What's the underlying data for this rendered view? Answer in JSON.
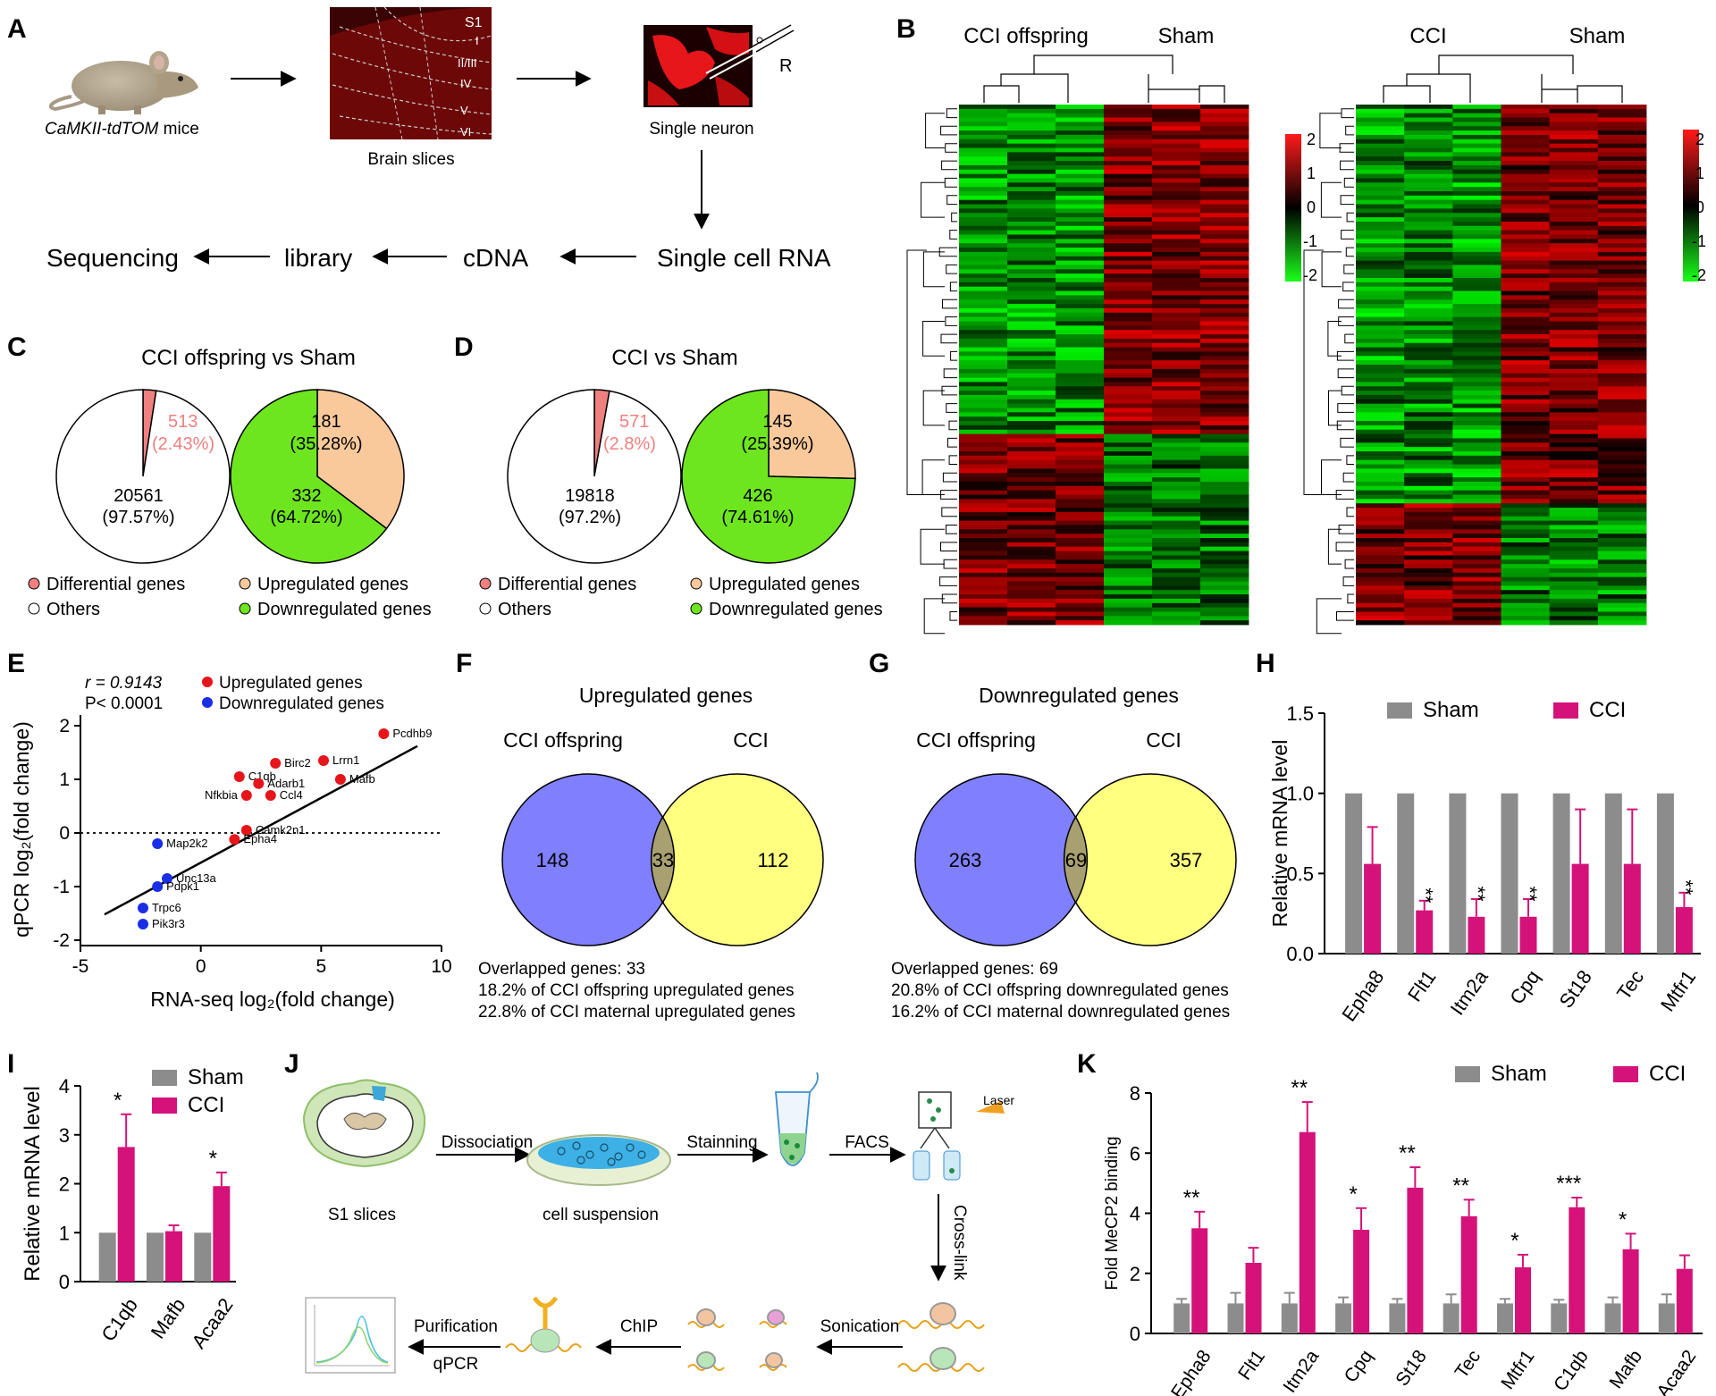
{
  "panels": {
    "A": {
      "letter": "A",
      "mouse_label_italic": "CaMKII-tdTOM",
      "mouse_label_rest": " mice",
      "brain_slices": "Brain slices",
      "slice_tag": "S1",
      "layers": [
        "I",
        "II/III",
        "IV",
        "V",
        "VI"
      ],
      "single_neuron": "Single neuron",
      "electrode_tag": "R",
      "single_cell_rna": "Single cell RNA",
      "cdna": "cDNA",
      "library": "library",
      "sequencing": "Sequencing"
    },
    "B": {
      "letter": "B",
      "left_headers": [
        "CCI offspring",
        "Sham"
      ],
      "right_headers": [
        "CCI",
        "Sham"
      ],
      "scale_ticks": [
        "2",
        "1",
        "0",
        "-1",
        "-2"
      ]
    },
    "J": {
      "letter": "J",
      "s1_slices": "S1 slices",
      "dissociation": "Dissociation",
      "cell_suspension": "cell suspension",
      "stainning": "Stainning",
      "facs": "FACS",
      "laser": "Laser",
      "cross_link": "Cross-link",
      "sonication": "Sonication",
      "chip": "ChIP",
      "purification": "Purification",
      "qpcr": "qPCR"
    }
  },
  "colors": {
    "pie_red": "#f08080",
    "pie_peach": "#f9c99b",
    "pie_green": "#6ee61f",
    "venn_blue": "#8080ff",
    "venn_yellow": "#ffff80",
    "bar_grey": "#8c8c8c",
    "bar_magenta": "#d4127a",
    "dot_red": "#e6151b",
    "dot_blue": "#1a2ee6"
  },
  "chart_data": [
    {
      "id": "C",
      "type": "pie",
      "letter": "C",
      "title": "CCI offspring vs Sham",
      "pies": [
        {
          "slices": [
            {
              "name": "Differential genes",
              "value": 513,
              "label": "513",
              "pct": "(2.43%)"
            },
            {
              "name": "Others",
              "value": 20561,
              "label": "20561",
              "pct": "(97.57%)"
            }
          ]
        },
        {
          "slices": [
            {
              "name": "Upregulated genes",
              "value": 181,
              "label": "181",
              "pct": "(35.28%)"
            },
            {
              "name": "Downregulated genes",
              "value": 332,
              "label": "332",
              "pct": "(64.72%)"
            }
          ]
        }
      ],
      "legend": [
        "Differential genes",
        "Upregulated genes",
        "Others",
        "Downregulated genes"
      ]
    },
    {
      "id": "D",
      "type": "pie",
      "letter": "D",
      "title": "CCI vs Sham",
      "pies": [
        {
          "slices": [
            {
              "name": "Differential genes",
              "value": 571,
              "label": "571",
              "pct": "(2.8%)"
            },
            {
              "name": "Others",
              "value": 19818,
              "label": "19818",
              "pct": "(97.2%)"
            }
          ]
        },
        {
          "slices": [
            {
              "name": "Upregulated genes",
              "value": 145,
              "label": "145",
              "pct": "(25.39%)"
            },
            {
              "name": "Downregulated genes",
              "value": 426,
              "label": "426",
              "pct": "(74.61%)"
            }
          ]
        }
      ],
      "legend": [
        "Differential genes",
        "Upregulated genes",
        "Others",
        "Downregulated genes"
      ]
    },
    {
      "id": "E",
      "type": "scatter",
      "letter": "E",
      "stat_r": "r = 0.9143",
      "stat_p": "P< 0.0001",
      "legend": [
        "Upregulated genes",
        "Downregulated genes"
      ],
      "xlabel": "RNA-seq log₂(fold change)",
      "ylabel": "qPCR log₂(fold change)",
      "xlim": [
        -5,
        10
      ],
      "ylim": [
        -2.1,
        2.2
      ],
      "xticks": [
        -5,
        0,
        5,
        10
      ],
      "yticks": [
        -2,
        -1,
        0,
        1,
        2
      ],
      "fit_line": {
        "x": [
          -4,
          9
        ],
        "y": [
          -1.52,
          1.62
        ]
      },
      "points": [
        {
          "gene": "Pcdhb9",
          "x": 7.6,
          "y": 1.85,
          "group": "up"
        },
        {
          "gene": "Lrrn1",
          "x": 5.1,
          "y": 1.35,
          "group": "up"
        },
        {
          "gene": "Mafb",
          "x": 5.8,
          "y": 1.0,
          "group": "up"
        },
        {
          "gene": "Birc2",
          "x": 3.1,
          "y": 1.3,
          "group": "up"
        },
        {
          "gene": "C1qb",
          "x": 1.6,
          "y": 1.05,
          "group": "up"
        },
        {
          "gene": "Adarb1",
          "x": 2.4,
          "y": 0.92,
          "group": "up"
        },
        {
          "gene": "Nfkbia",
          "x": 1.9,
          "y": 0.7,
          "group": "up"
        },
        {
          "gene": "Ccl4",
          "x": 2.9,
          "y": 0.7,
          "group": "up"
        },
        {
          "gene": "Camk2n1",
          "x": 1.9,
          "y": 0.05,
          "group": "up"
        },
        {
          "gene": "Epha4",
          "x": 1.4,
          "y": -0.12,
          "group": "up"
        },
        {
          "gene": "Map2k2",
          "x": -1.8,
          "y": -0.2,
          "group": "down"
        },
        {
          "gene": "Unc13a",
          "x": -1.4,
          "y": -0.85,
          "group": "down"
        },
        {
          "gene": "Pdpk1",
          "x": -1.8,
          "y": -1.0,
          "group": "down"
        },
        {
          "gene": "Trpc6",
          "x": -2.4,
          "y": -1.4,
          "group": "down"
        },
        {
          "gene": "Pik3r3",
          "x": -2.4,
          "y": -1.7,
          "group": "down"
        }
      ]
    },
    {
      "id": "F",
      "type": "venn",
      "letter": "F",
      "title": "Upregulated genes",
      "sets": [
        "CCI offspring",
        "CCI"
      ],
      "values": [
        "148",
        "33",
        "112"
      ],
      "notes": [
        "Overlapped genes:  33",
        "18.2% of CCI offspring upregulated genes",
        "22.8% of CCI maternal upregulated genes"
      ]
    },
    {
      "id": "G",
      "type": "venn",
      "letter": "G",
      "title": "Downregulated genes",
      "sets": [
        "CCI offspring",
        "CCI"
      ],
      "values": [
        "263",
        "69",
        "357"
      ],
      "notes": [
        "Overlapped genes: 69",
        "20.8% of CCI offspring downregulated genes",
        "16.2% of CCI maternal downregulated genes"
      ]
    },
    {
      "id": "H",
      "type": "bar",
      "letter": "H",
      "ylabel": "Relative mRNA level",
      "ylim": [
        0,
        1.5
      ],
      "yticks": [
        "0.0",
        "0.5",
        "1.0",
        "1.5"
      ],
      "categories": [
        "Epha8",
        "Flt1",
        "Itm2a",
        "Cpq",
        "St18",
        "Tec",
        "Mtfr1"
      ],
      "series": [
        {
          "name": "Sham",
          "values": [
            1,
            1,
            1,
            1,
            1,
            1,
            1
          ],
          "errors": [
            0,
            0,
            0,
            0,
            0,
            0,
            0
          ]
        },
        {
          "name": "CCI",
          "values": [
            0.56,
            0.27,
            0.23,
            0.23,
            0.56,
            0.56,
            0.29
          ],
          "errors": [
            0.23,
            0.06,
            0.11,
            0.11,
            0.34,
            0.34,
            0.09
          ]
        }
      ],
      "significance": [
        "",
        "**",
        "**",
        "**",
        "",
        "",
        "**"
      ],
      "sig_vertical": true
    },
    {
      "id": "I",
      "type": "bar",
      "letter": "I",
      "ylabel": "Relative mRNA level",
      "ylim": [
        0,
        4
      ],
      "yticks": [
        "0",
        "1",
        "2",
        "3",
        "4"
      ],
      "categories": [
        "C1qb",
        "Mafb",
        "Acaa2"
      ],
      "series": [
        {
          "name": "Sham",
          "values": [
            1,
            1,
            1
          ],
          "errors": [
            0,
            0,
            0
          ]
        },
        {
          "name": "CCI",
          "values": [
            2.75,
            1.03,
            1.95
          ],
          "errors": [
            0.67,
            0.12,
            0.28
          ]
        }
      ],
      "significance": [
        "*",
        "",
        "*"
      ],
      "sig_vertical": false
    },
    {
      "id": "K",
      "type": "bar",
      "letter": "K",
      "ylabel": "Fold MeCP2 binding",
      "ylim": [
        0,
        8
      ],
      "yticks": [
        "0",
        "2",
        "4",
        "6",
        "8"
      ],
      "categories": [
        "Epha8",
        "Flt1",
        "Itm2a",
        "Cpq",
        "St18",
        "Tec",
        "Mtfr1",
        "C1qb",
        "Mafb",
        "Acaa2"
      ],
      "series": [
        {
          "name": "Sham",
          "values": [
            1,
            1,
            1,
            1,
            1,
            1,
            1,
            1,
            1,
            1
          ],
          "errors": [
            0.15,
            0.35,
            0.35,
            0.2,
            0.15,
            0.3,
            0.15,
            0.12,
            0.2,
            0.3
          ]
        },
        {
          "name": "CCI",
          "values": [
            3.5,
            2.35,
            6.7,
            3.45,
            4.85,
            3.9,
            2.2,
            4.2,
            2.8,
            2.15
          ],
          "errors": [
            0.55,
            0.5,
            1.0,
            0.72,
            0.68,
            0.55,
            0.42,
            0.32,
            0.52,
            0.45
          ]
        }
      ],
      "significance": [
        "**",
        "",
        "**",
        "*",
        "**",
        "**",
        "*",
        "***",
        "*",
        ""
      ],
      "sig_vertical": false
    }
  ]
}
